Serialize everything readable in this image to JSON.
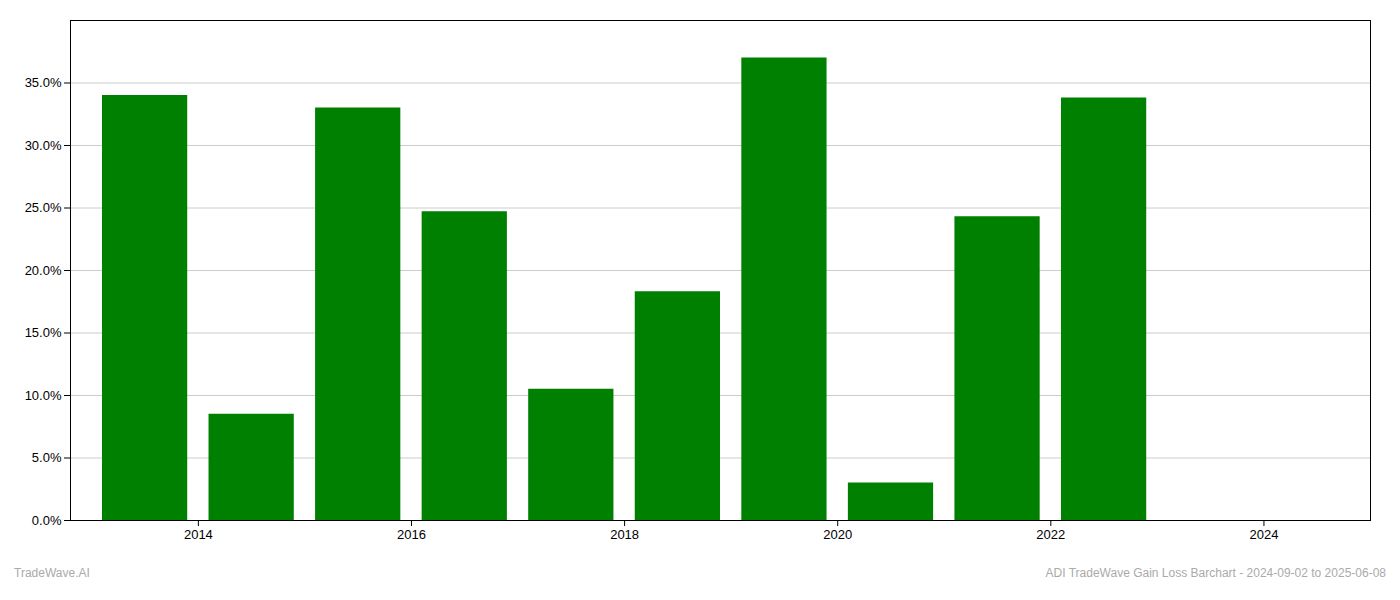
{
  "chart_data": {
    "type": "bar",
    "x": [
      2013.5,
      2014.5,
      2015.5,
      2016.5,
      2017.5,
      2018.5,
      2019.5,
      2020.5,
      2021.5,
      2022.5
    ],
    "values": [
      0.34,
      0.085,
      0.33,
      0.247,
      0.105,
      0.183,
      0.37,
      0.03,
      0.243,
      0.338
    ],
    "color": "#008000",
    "xlim": [
      2012.8,
      2025.0
    ],
    "xticks": [
      2014,
      2016,
      2018,
      2020,
      2022,
      2024
    ],
    "ylim": [
      0,
      0.4
    ],
    "yticks": [
      {
        "value": 0.0,
        "label": "0.0%"
      },
      {
        "value": 0.05,
        "label": "5.0%"
      },
      {
        "value": 0.1,
        "label": "10.0%"
      },
      {
        "value": 0.15,
        "label": "15.0%"
      },
      {
        "value": 0.2,
        "label": "20.0%"
      },
      {
        "value": 0.25,
        "label": "25.0%"
      },
      {
        "value": 0.3,
        "label": "30.0%"
      },
      {
        "value": 0.35,
        "label": "35.0%"
      }
    ],
    "grid": true,
    "annotations": [
      "TradeWave.AI",
      "ADI TradeWave Gain Loss Barchart - 2024-09-02 to 2025-06-08"
    ]
  }
}
